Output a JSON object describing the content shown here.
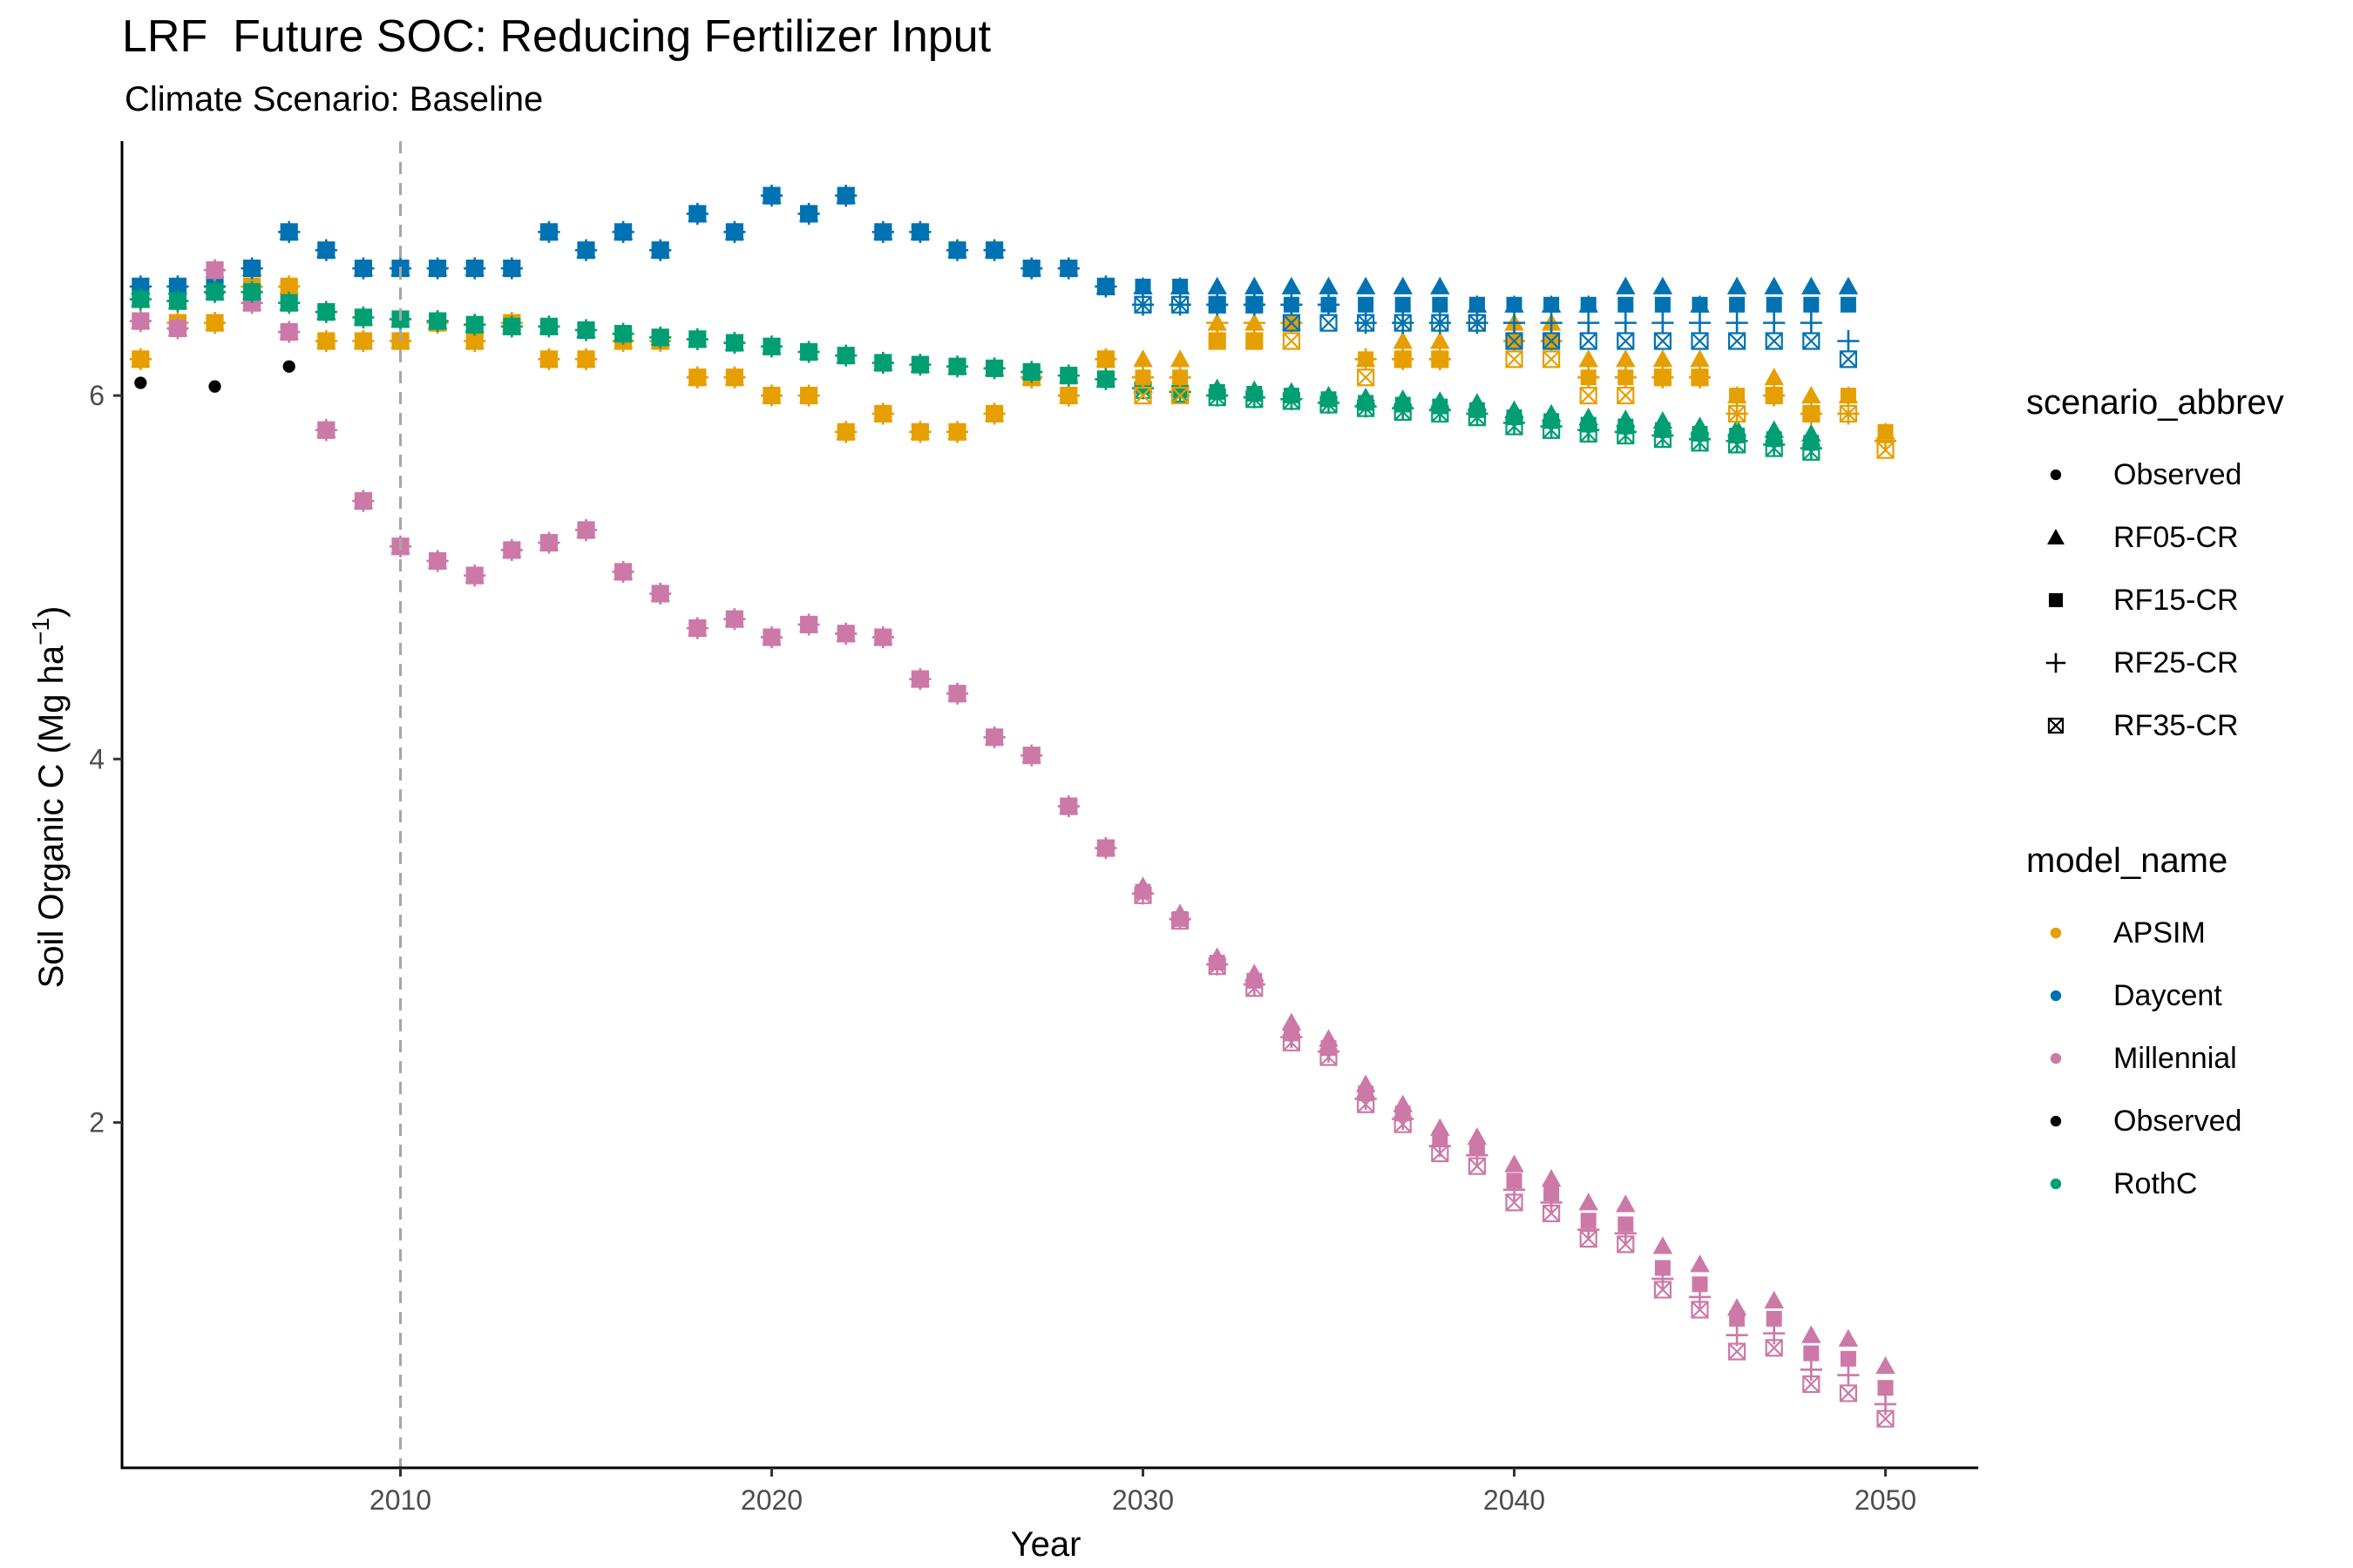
{
  "chart_data": {
    "type": "scatter",
    "title": "LRF  Future SOC: Reducing Fertilizer Input",
    "subtitle": "Climate Scenario: Baseline",
    "xlabel": "Year",
    "ylabel": "Soil Organic C (Mg ha",
    "ylabel_unit_sup": "−1",
    "ylabel_close": ")",
    "xlim": [
      2002.5,
      2052.5
    ],
    "ylim": [
      0.1,
      7.4
    ],
    "x_ticks": [
      2010,
      2020,
      2030,
      2040,
      2050
    ],
    "y_ticks": [
      2,
      4,
      6
    ],
    "grid": false,
    "vline": 2010,
    "legend_shape": {
      "title": "scenario_abbrev",
      "items": [
        {
          "label": "Observed",
          "shape": "circle"
        },
        {
          "label": "RF05-CR",
          "shape": "triangle"
        },
        {
          "label": "RF15-CR",
          "shape": "square"
        },
        {
          "label": "RF25-CR",
          "shape": "plus"
        },
        {
          "label": "RF35-CR",
          "shape": "boxx"
        }
      ]
    },
    "legend_color": {
      "title": "model_name",
      "items": [
        {
          "label": "APSIM",
          "color": "#E69F00"
        },
        {
          "label": "Daycent",
          "color": "#0072B2"
        },
        {
          "label": "Millennial",
          "color": "#CC79A7"
        },
        {
          "label": "Observed",
          "color": "#000000"
        },
        {
          "label": "RothC",
          "color": "#009E73"
        }
      ]
    },
    "observed": {
      "x": [
        2003,
        2005,
        2007
      ],
      "y": [
        6.07,
        6.05,
        6.16
      ]
    },
    "historical": {
      "x": [
        2003,
        2004,
        2005,
        2006,
        2007,
        2008,
        2009,
        2010,
        2011,
        2012,
        2013,
        2014,
        2015,
        2016,
        2017,
        2018,
        2019,
        2020,
        2021,
        2022,
        2023,
        2024,
        2025,
        2026,
        2027,
        2028,
        2029
      ],
      "APSIM": [
        6.2,
        6.4,
        6.4,
        6.6,
        6.6,
        6.3,
        6.3,
        6.3,
        6.4,
        6.3,
        6.4,
        6.2,
        6.2,
        6.3,
        6.3,
        6.1,
        6.1,
        6.0,
        6.0,
        5.8,
        5.9,
        5.8,
        5.8,
        5.9,
        6.1,
        6.0,
        6.2
      ],
      "Daycent": [
        6.6,
        6.6,
        6.6,
        6.7,
        6.9,
        6.8,
        6.7,
        6.7,
        6.7,
        6.7,
        6.7,
        6.9,
        6.8,
        6.9,
        6.8,
        7.0,
        6.9,
        7.1,
        7.0,
        7.1,
        6.9,
        6.9,
        6.8,
        6.8,
        6.7,
        6.7,
        6.6
      ],
      "Millennial": [
        6.41,
        6.37,
        6.69,
        6.51,
        6.35,
        5.81,
        5.42,
        5.17,
        5.09,
        5.01,
        5.15,
        5.19,
        5.26,
        5.03,
        4.91,
        4.72,
        4.77,
        4.67,
        4.74,
        4.69,
        4.67,
        4.44,
        4.36,
        4.12,
        4.02,
        3.74,
        3.51
      ],
      "RothC": [
        6.53,
        6.52,
        6.57,
        6.57,
        6.51,
        6.46,
        6.43,
        6.42,
        6.41,
        6.39,
        6.38,
        6.38,
        6.36,
        6.34,
        6.32,
        6.31,
        6.29,
        6.27,
        6.24,
        6.22,
        6.18,
        6.17,
        6.16,
        6.15,
        6.13,
        6.11,
        6.09
      ]
    },
    "future": {
      "x": [
        2030,
        2031,
        2032,
        2033,
        2034,
        2035,
        2036,
        2037,
        2038,
        2039,
        2040,
        2041,
        2042,
        2043,
        2044,
        2045,
        2046,
        2047,
        2048,
        2049,
        2050
      ],
      "APSIM": {
        "RF05-CR": [
          6.2,
          6.2,
          6.4,
          6.4,
          6.4,
          null,
          6.2,
          6.3,
          6.3,
          6.5,
          6.4,
          6.4,
          6.2,
          6.2,
          6.2,
          6.2,
          6.0,
          6.1,
          6.0,
          6.0,
          5.8
        ],
        "RF15-CR": [
          6.1,
          6.1,
          6.3,
          6.3,
          6.4,
          null,
          6.2,
          6.2,
          6.2,
          6.5,
          6.3,
          6.3,
          6.1,
          6.1,
          6.1,
          6.1,
          6.0,
          6.0,
          5.9,
          6.0,
          5.8
        ],
        "RF25-CR": [
          6.1,
          6.1,
          6.4,
          6.4,
          6.4,
          null,
          6.2,
          6.2,
          6.2,
          6.4,
          6.3,
          6.3,
          6.1,
          6.1,
          6.1,
          6.1,
          5.9,
          6.0,
          5.9,
          5.9,
          5.75
        ],
        "RF35-CR": [
          6.0,
          6.0,
          6.3,
          6.3,
          6.3,
          null,
          6.1,
          6.2,
          6.2,
          6.4,
          6.2,
          6.2,
          6.0,
          6.0,
          6.1,
          6.1,
          5.9,
          6.0,
          5.9,
          5.9,
          5.7
        ]
      },
      "Daycent": {
        "RF05-CR": [
          6.6,
          6.6,
          6.6,
          6.6,
          6.6,
          6.6,
          6.6,
          6.6,
          6.6,
          6.5,
          6.5,
          6.5,
          6.5,
          6.6,
          6.6,
          6.5,
          6.6,
          6.6,
          6.6,
          6.6,
          null
        ],
        "RF15-CR": [
          6.6,
          6.6,
          6.5,
          6.5,
          6.5,
          6.5,
          6.5,
          6.5,
          6.5,
          6.5,
          6.5,
          6.5,
          6.5,
          6.5,
          6.5,
          6.5,
          6.5,
          6.5,
          6.5,
          6.5,
          null
        ],
        "RF25-CR": [
          6.5,
          6.5,
          6.5,
          6.5,
          6.5,
          6.5,
          6.4,
          6.4,
          6.4,
          6.4,
          6.4,
          6.4,
          6.4,
          6.4,
          6.4,
          6.4,
          6.4,
          6.4,
          6.4,
          6.3,
          null
        ],
        "RF35-CR": [
          6.5,
          6.5,
          6.5,
          6.5,
          6.4,
          6.4,
          6.4,
          6.4,
          6.4,
          6.4,
          6.3,
          6.3,
          6.3,
          6.3,
          6.3,
          6.3,
          6.3,
          6.3,
          6.3,
          6.2,
          null
        ]
      },
      "Millennial": {
        "RF05-CR": [
          3.3,
          3.15,
          2.91,
          2.82,
          2.55,
          2.46,
          2.21,
          2.1,
          1.97,
          1.92,
          1.77,
          1.69,
          1.56,
          1.55,
          1.32,
          1.22,
          0.98,
          1.02,
          0.83,
          0.81,
          0.66
        ],
        "RF15-CR": [
          3.27,
          3.12,
          2.88,
          2.78,
          2.49,
          2.41,
          2.16,
          2.05,
          1.91,
          1.86,
          1.68,
          1.61,
          1.46,
          1.44,
          1.2,
          1.11,
          0.92,
          0.92,
          0.73,
          0.7,
          0.54
        ],
        "RF25-CR": [
          3.26,
          3.12,
          2.87,
          2.76,
          2.47,
          2.39,
          2.13,
          2.02,
          1.87,
          1.82,
          1.63,
          1.56,
          1.41,
          1.39,
          1.14,
          1.04,
          0.83,
          0.84,
          0.64,
          0.61,
          0.45
        ],
        "RF35-CR": [
          3.25,
          3.11,
          2.86,
          2.74,
          2.44,
          2.36,
          2.1,
          1.99,
          1.83,
          1.76,
          1.56,
          1.5,
          1.36,
          1.33,
          1.08,
          0.97,
          0.74,
          0.76,
          0.56,
          0.51,
          0.37
        ]
      },
      "RothC": {
        "RF05-CR": [
          6.06,
          6.04,
          6.04,
          6.03,
          6.02,
          6.0,
          5.99,
          5.98,
          5.97,
          5.96,
          5.92,
          5.9,
          5.88,
          5.87,
          5.86,
          5.83,
          5.82,
          5.81,
          5.79,
          null,
          null
        ],
        "RF15-CR": [
          6.05,
          6.03,
          6.02,
          6.01,
          6.0,
          5.98,
          5.96,
          5.95,
          5.94,
          5.92,
          5.88,
          5.86,
          5.84,
          5.83,
          5.81,
          5.79,
          5.78,
          5.76,
          5.74,
          null,
          null
        ],
        "RF25-CR": [
          6.04,
          6.02,
          6.0,
          5.99,
          5.98,
          5.96,
          5.94,
          5.93,
          5.92,
          5.9,
          5.85,
          5.83,
          5.81,
          5.8,
          5.78,
          5.76,
          5.75,
          5.73,
          5.71,
          null,
          null
        ],
        "RF35-CR": [
          6.03,
          6.01,
          5.99,
          5.98,
          5.97,
          5.95,
          5.93,
          5.91,
          5.9,
          5.88,
          5.83,
          5.81,
          5.79,
          5.78,
          5.76,
          5.74,
          5.73,
          5.71,
          5.69,
          null,
          null
        ]
      }
    }
  }
}
